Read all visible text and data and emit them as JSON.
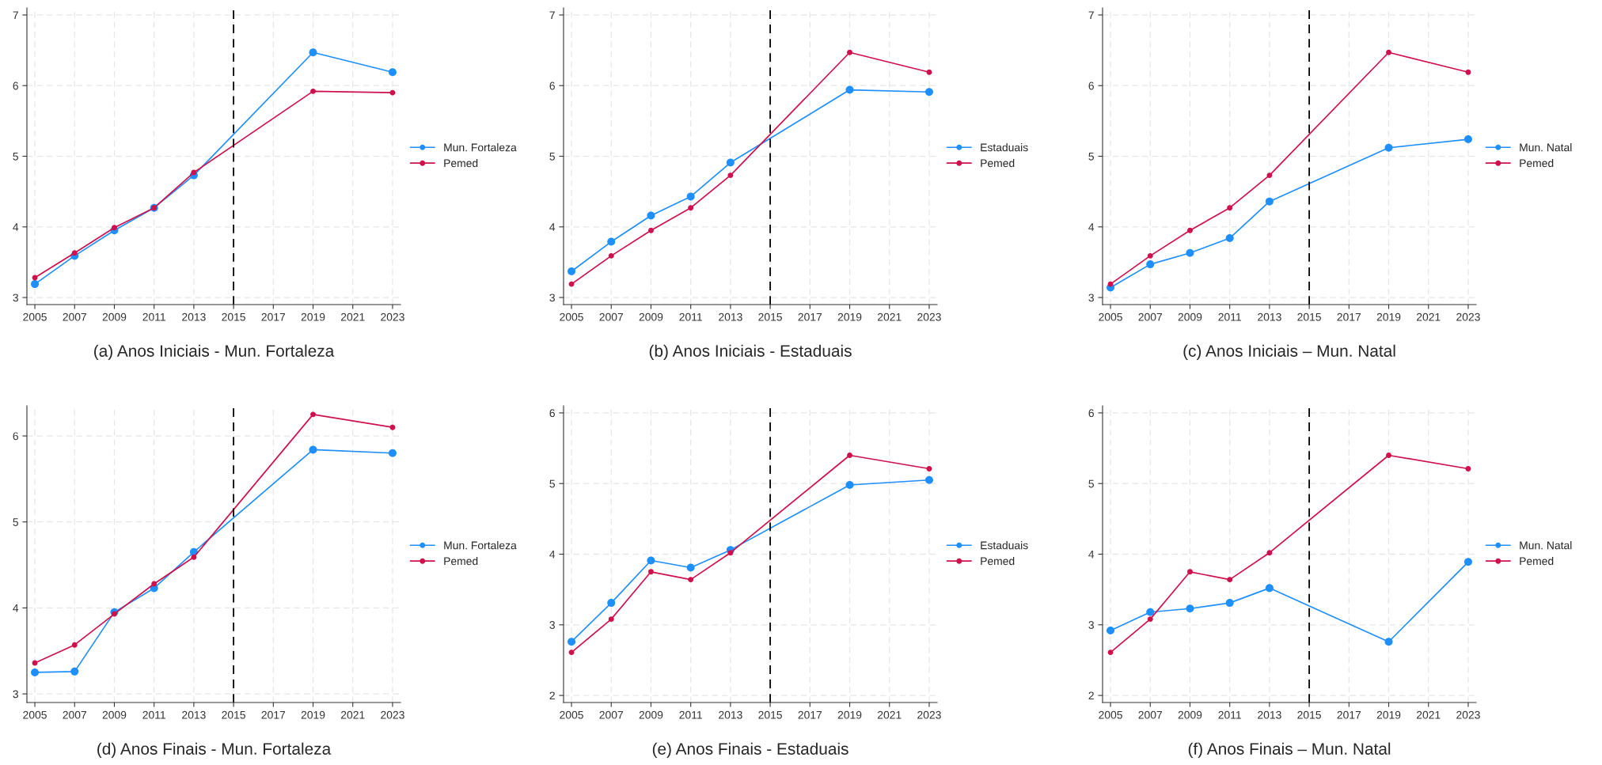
{
  "chart_data": [
    {
      "type": "line",
      "title": "(a) Anos Iniciais - Mun. Fortaleza",
      "x": [
        2005,
        2007,
        2009,
        2011,
        2013,
        2019,
        2023
      ],
      "xlim": [
        2004.6,
        2023.4
      ],
      "xticks": [
        2005,
        2007,
        2009,
        2011,
        2013,
        2015,
        2017,
        2019,
        2021,
        2023
      ],
      "ylim": [
        2.9,
        7.1
      ],
      "yticks": [
        3,
        4,
        5,
        6,
        7
      ],
      "grid": true,
      "legend": "right",
      "marker": "circle",
      "ref_lines": [
        {
          "axis": "x",
          "value": 2015,
          "color": "#000000",
          "line_style": "dashed"
        }
      ],
      "series": [
        {
          "name": "Mun. Fortaleza",
          "color": "#1e8fff",
          "values": [
            3.19,
            3.59,
            3.95,
            4.27,
            4.73,
            6.47,
            6.19
          ]
        },
        {
          "name": "Pemed",
          "color": "#d0104c",
          "values": [
            3.28,
            3.63,
            3.99,
            4.27,
            4.77,
            5.92,
            5.9
          ]
        }
      ]
    },
    {
      "type": "line",
      "title": "(b) Anos Iniciais - Estaduais",
      "x": [
        2005,
        2007,
        2009,
        2011,
        2013,
        2019,
        2023
      ],
      "xlim": [
        2004.6,
        2023.4
      ],
      "xticks": [
        2005,
        2007,
        2009,
        2011,
        2013,
        2015,
        2017,
        2019,
        2021,
        2023
      ],
      "ylim": [
        2.9,
        7.1
      ],
      "yticks": [
        3,
        4,
        5,
        6,
        7
      ],
      "grid": true,
      "legend": "right",
      "marker": "circle",
      "ref_lines": [
        {
          "axis": "x",
          "value": 2015,
          "color": "#000000",
          "line_style": "dashed"
        }
      ],
      "series": [
        {
          "name": "Estaduais",
          "color": "#1e8fff",
          "values": [
            3.37,
            3.79,
            4.16,
            4.43,
            4.91,
            5.94,
            5.91
          ]
        },
        {
          "name": "Pemed",
          "color": "#d0104c",
          "values": [
            3.19,
            3.59,
            3.95,
            4.27,
            4.73,
            6.47,
            6.19
          ]
        }
      ]
    },
    {
      "type": "line",
      "title": "(c) Anos Iniciais – Mun. Natal",
      "x": [
        2005,
        2007,
        2009,
        2011,
        2013,
        2019,
        2023
      ],
      "xlim": [
        2004.6,
        2023.4
      ],
      "xticks": [
        2005,
        2007,
        2009,
        2011,
        2013,
        2015,
        2017,
        2019,
        2021,
        2023
      ],
      "ylim": [
        2.9,
        7.1
      ],
      "yticks": [
        3,
        4,
        5,
        6,
        7
      ],
      "grid": true,
      "legend": "right",
      "marker": "circle",
      "ref_lines": [
        {
          "axis": "x",
          "value": 2015,
          "color": "#000000",
          "line_style": "dashed"
        }
      ],
      "series": [
        {
          "name": "Mun. Natal",
          "color": "#1e8fff",
          "values": [
            3.14,
            3.47,
            3.63,
            3.84,
            4.36,
            5.12,
            5.24
          ]
        },
        {
          "name": "Pemed",
          "color": "#d0104c",
          "values": [
            3.19,
            3.59,
            3.95,
            4.27,
            4.73,
            6.47,
            6.19
          ]
        }
      ]
    },
    {
      "type": "line",
      "title": "(d) Anos Finais - Mun. Fortaleza",
      "x": [
        2005,
        2007,
        2009,
        2011,
        2013,
        2019,
        2023
      ],
      "xlim": [
        2004.6,
        2023.4
      ],
      "xticks": [
        2005,
        2007,
        2009,
        2011,
        2013,
        2015,
        2017,
        2019,
        2021,
        2023
      ],
      "ylim": [
        2.9,
        6.35
      ],
      "yticks": [
        3,
        4,
        5,
        6
      ],
      "grid": true,
      "legend": "right",
      "marker": "circle",
      "ref_lines": [
        {
          "axis": "x",
          "value": 2015,
          "color": "#000000",
          "line_style": "dashed"
        }
      ],
      "series": [
        {
          "name": "Mun. Fortaleza",
          "color": "#1e8fff",
          "values": [
            3.25,
            3.26,
            3.95,
            4.23,
            4.65,
            5.84,
            5.8
          ]
        },
        {
          "name": "Pemed",
          "color": "#d0104c",
          "values": [
            3.36,
            3.57,
            3.93,
            4.28,
            4.59,
            6.25,
            6.1
          ]
        }
      ]
    },
    {
      "type": "line",
      "title": "(e) Anos Finais - Estaduais",
      "x": [
        2005,
        2007,
        2009,
        2011,
        2013,
        2019,
        2023
      ],
      "xlim": [
        2004.6,
        2023.4
      ],
      "xticks": [
        2005,
        2007,
        2009,
        2011,
        2013,
        2015,
        2017,
        2019,
        2021,
        2023
      ],
      "ylim": [
        1.9,
        6.1
      ],
      "yticks": [
        2,
        3,
        4,
        5,
        6
      ],
      "grid": true,
      "legend": "right",
      "marker": "circle",
      "ref_lines": [
        {
          "axis": "x",
          "value": 2015,
          "color": "#000000",
          "line_style": "dashed"
        }
      ],
      "series": [
        {
          "name": "Estaduais",
          "color": "#1e8fff",
          "values": [
            2.76,
            3.31,
            3.91,
            3.81,
            4.06,
            4.98,
            5.05
          ]
        },
        {
          "name": "Pemed",
          "color": "#d0104c",
          "values": [
            2.61,
            3.08,
            3.75,
            3.64,
            4.02,
            5.4,
            5.21
          ]
        }
      ]
    },
    {
      "type": "line",
      "title": "(f) Anos Finais – Mun. Natal",
      "x": [
        2005,
        2007,
        2009,
        2011,
        2013,
        2019,
        2023
      ],
      "xlim": [
        2004.6,
        2023.4
      ],
      "xticks": [
        2005,
        2007,
        2009,
        2011,
        2013,
        2015,
        2017,
        2019,
        2021,
        2023
      ],
      "ylim": [
        1.9,
        6.1
      ],
      "yticks": [
        2,
        3,
        4,
        5,
        6
      ],
      "grid": true,
      "legend": "right",
      "marker": "circle",
      "ref_lines": [
        {
          "axis": "x",
          "value": 2015,
          "color": "#000000",
          "line_style": "dashed"
        }
      ],
      "series": [
        {
          "name": "Mun. Natal",
          "color": "#1e8fff",
          "values": [
            2.92,
            3.18,
            3.23,
            3.31,
            3.52,
            2.76,
            3.89
          ]
        },
        {
          "name": "Pemed",
          "color": "#d0104c",
          "values": [
            2.61,
            3.08,
            3.75,
            3.64,
            4.02,
            5.4,
            5.21
          ]
        }
      ]
    }
  ]
}
